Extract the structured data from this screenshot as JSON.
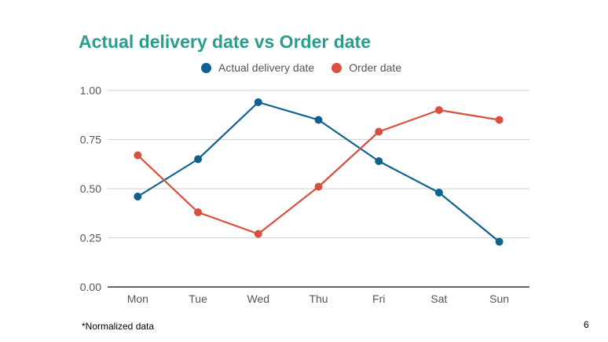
{
  "chart_data": {
    "type": "line",
    "title": "Actual delivery date vs Order date",
    "xlabel": "",
    "ylabel": "",
    "categories": [
      "Mon",
      "Tue",
      "Wed",
      "Thu",
      "Fri",
      "Sat",
      "Sun"
    ],
    "series": [
      {
        "name": "Actual delivery date",
        "color": "#0f6190",
        "values": [
          0.46,
          0.65,
          0.94,
          0.85,
          0.64,
          0.48,
          0.23
        ]
      },
      {
        "name": "Order date",
        "color": "#d9503f",
        "values": [
          0.67,
          0.38,
          0.27,
          0.51,
          0.79,
          0.9,
          0.85
        ]
      }
    ],
    "ylim": [
      0,
      1
    ],
    "yticks": [
      "0.00",
      "0.25",
      "0.50",
      "0.75",
      "1.00"
    ],
    "grid": true,
    "legend_position": "top"
  },
  "footnote": "*Normalized data",
  "page_number": "6"
}
